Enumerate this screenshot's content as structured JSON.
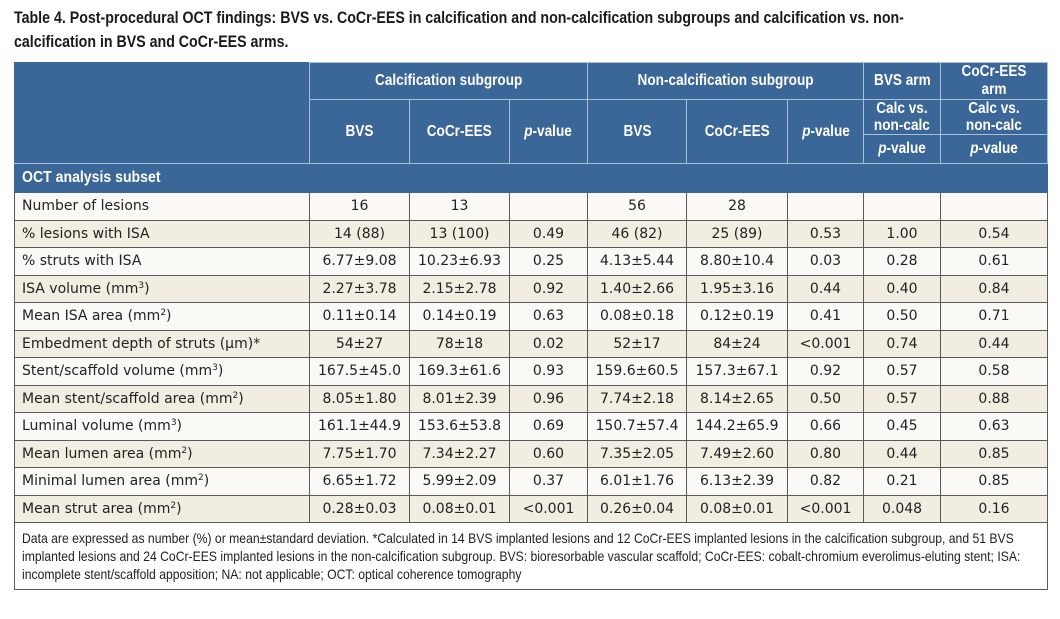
{
  "caption": {
    "line1": "Table 4. Post-procedural OCT findings: BVS vs. CoCr-EES in calcification and non-calcification subgroups and calcification vs. non-",
    "line2": "calcification in BVS and CoCr-EES arms."
  },
  "header": {
    "groups": {
      "calc": "Calcification subgroup",
      "noncalc": "Non-calcification subgroup",
      "bvs_arm": "BVS arm",
      "cocr_arm": "CoCr-EES arm"
    },
    "cols": {
      "bvs": "BVS",
      "cocr": "CoCr-EES",
      "p_italic": "p",
      "p_rest": "-value",
      "calc_vs_1": "Calc vs.",
      "calc_vs_2": "non-calc"
    }
  },
  "section_title": "OCT analysis subset",
  "rows": [
    {
      "label": "Number of lesions",
      "sup": "",
      "suffix": "",
      "values": [
        "16",
        "13",
        "",
        "56",
        "28",
        "",
        "",
        ""
      ]
    },
    {
      "label": "% lesions with ISA",
      "sup": "",
      "suffix": "",
      "values": [
        "14 (88)",
        "13 (100)",
        "0.49",
        "46 (82)",
        "25 (89)",
        "0.53",
        "1.00",
        "0.54"
      ]
    },
    {
      "label": "% struts with ISA",
      "sup": "",
      "suffix": "",
      "values": [
        "6.77±9.08",
        "10.23±6.93",
        "0.25",
        "4.13±5.44",
        "8.80±10.4",
        "0.03",
        "0.28",
        "0.61"
      ]
    },
    {
      "label": "ISA volume (mm",
      "sup": "3",
      "suffix": ")",
      "values": [
        "2.27±3.78",
        "2.15±2.78",
        "0.92",
        "1.40±2.66",
        "1.95±3.16",
        "0.44",
        "0.40",
        "0.84"
      ]
    },
    {
      "label": "Mean ISA area (mm",
      "sup": "2",
      "suffix": ")",
      "values": [
        "0.11±0.14",
        "0.14±0.19",
        "0.63",
        "0.08±0.18",
        "0.12±0.19",
        "0.41",
        "0.50",
        "0.71"
      ]
    },
    {
      "label": "Embedment depth of struts (µm)*",
      "sup": "",
      "suffix": "",
      "values": [
        "54±27",
        "78±18",
        "0.02",
        "52±17",
        "84±24",
        "<0.001",
        "0.74",
        "0.44"
      ]
    },
    {
      "label": "Stent/scaffold volume (mm",
      "sup": "3",
      "suffix": ")",
      "values": [
        "167.5±45.0",
        "169.3±61.6",
        "0.93",
        "159.6±60.5",
        "157.3±67.1",
        "0.92",
        "0.57",
        "0.58"
      ]
    },
    {
      "label": "Mean stent/scaffold area (mm",
      "sup": "2",
      "suffix": ")",
      "values": [
        "8.05±1.80",
        "8.01±2.39",
        "0.96",
        "7.74±2.18",
        "8.14±2.65",
        "0.50",
        "0.57",
        "0.88"
      ]
    },
    {
      "label": "Luminal volume (mm",
      "sup": "3",
      "suffix": ")",
      "values": [
        "161.1±44.9",
        "153.6±53.8",
        "0.69",
        "150.7±57.4",
        "144.2±65.9",
        "0.66",
        "0.45",
        "0.63"
      ]
    },
    {
      "label": "Mean lumen area (mm",
      "sup": "2",
      "suffix": ")",
      "values": [
        "7.75±1.70",
        "7.34±2.27",
        "0.60",
        "7.35±2.05",
        "7.49±2.60",
        "0.80",
        "0.44",
        "0.85"
      ]
    },
    {
      "label": "Minimal lumen area (mm",
      "sup": "2",
      "suffix": ")",
      "values": [
        "6.65±1.72",
        "5.99±2.09",
        "0.37",
        "6.01±1.76",
        "6.13±2.39",
        "0.82",
        "0.21",
        "0.85"
      ]
    },
    {
      "label": "Mean strut area (mm",
      "sup": "2",
      "suffix": ")",
      "values": [
        "0.28±0.03",
        "0.08±0.01",
        "<0.001",
        "0.26±0.04",
        "0.08±0.01",
        "<0.001",
        "0.048",
        "0.16"
      ]
    }
  ],
  "footnote": "Data are expressed as number (%) or mean±standard deviation. *Calculated in 14 BVS implanted lesions and 12 CoCr-EES implanted lesions in the calcification subgroup, and 51 BVS implanted lesions and 24 CoCr-EES implanted lesions in the non-calcification subgroup. BVS: bioresorbable vascular scaffold; CoCr-EES: cobalt-chromium everolimus-eluting stent; ISA: incomplete stent/scaffold apposition; NA: not applicable; OCT: optical coherence tomography",
  "colors": {
    "header_bg": "#3b6698",
    "row_alt_bg": "#f1ede0",
    "row_bg": "#faf9f5"
  }
}
